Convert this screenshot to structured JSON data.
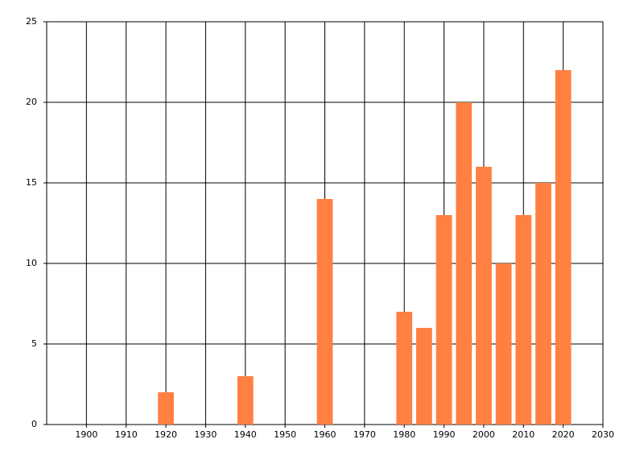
{
  "chart_data": {
    "type": "bar",
    "x": [
      1920,
      1940,
      1960,
      1980,
      1985,
      1990,
      1995,
      2000,
      2005,
      2010,
      2015,
      2020
    ],
    "values": [
      2,
      3,
      14,
      7,
      6,
      13,
      20,
      16,
      10,
      13,
      15,
      22
    ],
    "color": "#ff8040",
    "xlim": [
      1890,
      2030
    ],
    "xticks": [
      1900,
      1910,
      1920,
      1930,
      1940,
      1950,
      1960,
      1970,
      1980,
      1990,
      2000,
      2010,
      2020,
      2030
    ],
    "ylim": [
      0,
      25
    ],
    "yticks": [
      0,
      5,
      10,
      15,
      20,
      25
    ],
    "grid": true
  }
}
